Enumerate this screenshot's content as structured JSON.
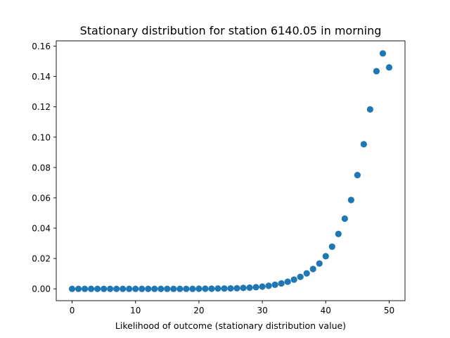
{
  "chart_data": {
    "type": "scatter",
    "title": "Stationary distribution for station 6140.05 in morning",
    "xlabel": "Likelihood of outcome (stationary distribution value)",
    "ylabel": "",
    "xlim": [
      -2.5,
      52.5
    ],
    "ylim": [
      -0.0078,
      0.1635
    ],
    "xticks": [
      0,
      10,
      20,
      30,
      40,
      50
    ],
    "yticks": [
      0.0,
      0.02,
      0.04,
      0.06,
      0.08,
      0.1,
      0.12,
      0.14,
      0.16
    ],
    "ytick_labels": [
      "0.00",
      "0.02",
      "0.04",
      "0.06",
      "0.08",
      "0.10",
      "0.12",
      "0.14",
      "0.16"
    ],
    "grid": false,
    "marker_color": "#1f77b4",
    "series": [
      {
        "x": [
          0,
          1,
          2,
          3,
          4,
          5,
          6,
          7,
          8,
          9,
          10,
          11,
          12,
          13,
          14,
          15,
          16,
          17,
          18,
          19,
          20,
          21,
          22,
          23,
          24,
          25,
          26,
          27,
          28,
          29,
          30,
          31,
          32,
          33,
          34,
          35,
          36,
          37,
          38,
          39,
          40,
          41,
          42,
          43,
          44,
          45,
          46,
          47,
          48,
          49,
          50
        ],
        "y": [
          0.0,
          0.0,
          0.0,
          0.0,
          0.0,
          0.0,
          0.0,
          0.0,
          0.0,
          0.0,
          0.0,
          0.0,
          0.0,
          0.0,
          0.0,
          0.0,
          0.0,
          0.0,
          0.0,
          0.0,
          0.0001,
          0.0001,
          0.0001,
          0.0002,
          0.0002,
          0.0003,
          0.0004,
          0.0006,
          0.0008,
          0.0011,
          0.0015,
          0.002,
          0.0027,
          0.0036,
          0.0047,
          0.0061,
          0.0079,
          0.0102,
          0.0131,
          0.0167,
          0.0215,
          0.0278,
          0.0362,
          0.0463,
          0.0586,
          0.075,
          0.0953,
          0.1183,
          0.1435,
          0.1552,
          0.146
        ]
      }
    ]
  }
}
